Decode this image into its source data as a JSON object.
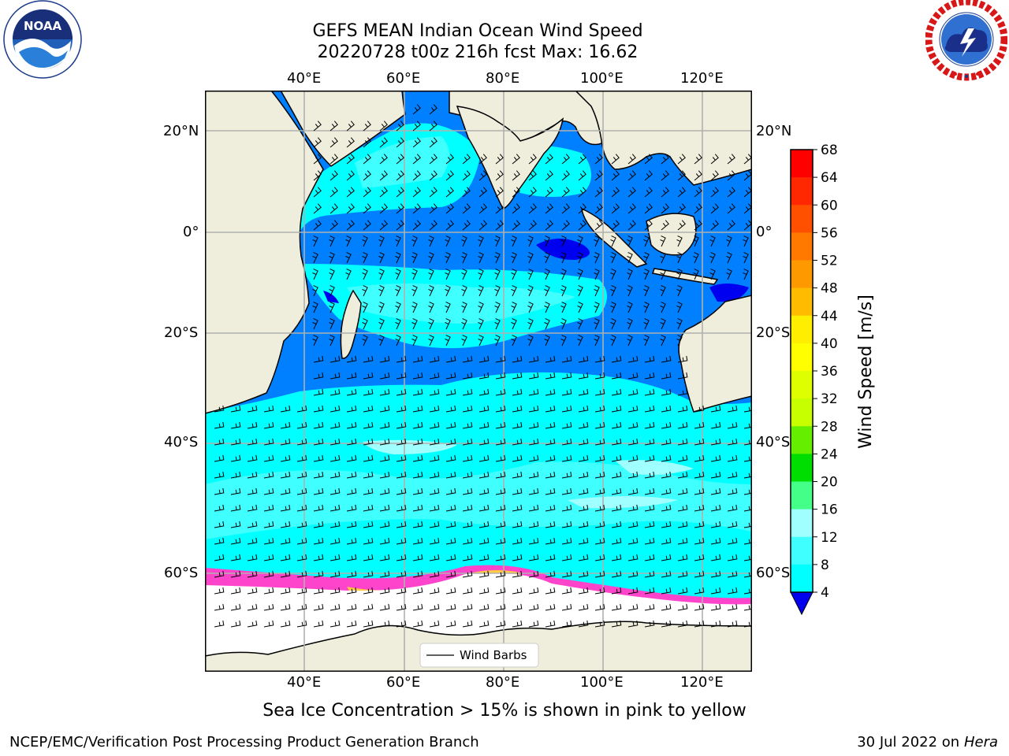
{
  "title": {
    "line1": "GEFS MEAN Indian Ocean Wind Speed",
    "line2": "20220728 t00z 216h fcst   Max: 16.62"
  },
  "map": {
    "lon_ticks": [
      "40°E",
      "60°E",
      "80°E",
      "100°E",
      "120°E"
    ],
    "lat_ticks": [
      "20°N",
      "0°",
      "20°S",
      "40°S",
      "60°S"
    ],
    "legend_label": "Wind Barbs",
    "colors": {
      "land": "#efeedd",
      "ice": "#ffffff",
      "speed_4_8": "#0080ff",
      "speed_0_4": "#0000f0",
      "speed_8_12": "#00ffff",
      "speed_12_16": "#40ffff",
      "speed_16_20": "#a0ffff",
      "grid": "#b0b0b0"
    }
  },
  "colorbar": {
    "label": "Wind Speed [m/s]",
    "ticks": [
      "68",
      "64",
      "60",
      "56",
      "52",
      "48",
      "44",
      "40",
      "36",
      "32",
      "28",
      "24",
      "20",
      "16",
      "12",
      "8",
      "4"
    ],
    "colors": [
      "#ff0000",
      "#ff2800",
      "#ff5000",
      "#ff7800",
      "#ff9900",
      "#ffbb00",
      "#ffee00",
      "#ffff00",
      "#ddff00",
      "#c8ff00",
      "#66ee00",
      "#00dd00",
      "#44ff88",
      "#a0ffff",
      "#40ffff",
      "#00ffff",
      "#0080ff"
    ],
    "extend_color": "#0000ee"
  },
  "caption": "Sea Ice Concentration > 15% is shown in pink to yellow",
  "footer": {
    "left": "NCEP/EMC/Verification Post Processing Product Generation Branch",
    "right_prefix": "30 Jul 2022 on ",
    "right_host": "Hera"
  },
  "logos": {
    "noaa_text": "NOAA",
    "noaa_ring": "NATIONAL OCEANIC AND ATMOSPHERIC ADMINISTRATION · U.S. DEPARTMENT OF COMMERCE",
    "nws_ring": "NATIONAL WEATHER SERVICE"
  }
}
